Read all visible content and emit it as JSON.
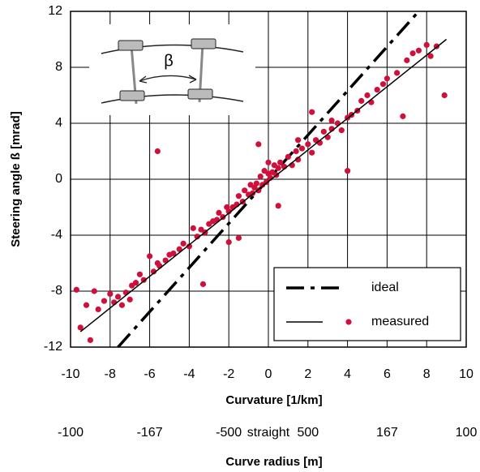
{
  "chart_data": {
    "type": "scatter",
    "xlabel": "Curvature        [1/km]",
    "ylabel": "Steering angle ß    [mrad]",
    "x2label": "Curve radius     [m]",
    "inset_label": "β",
    "xlim": [
      -10,
      10
    ],
    "ylim": [
      -12,
      12
    ],
    "xticks": [
      -10,
      -8,
      -6,
      -4,
      -2,
      0,
      2,
      4,
      6,
      8,
      10
    ],
    "yticks": [
      -12,
      -8,
      -4,
      0,
      4,
      8,
      12
    ],
    "x2ticks": [
      {
        "value": -10,
        "label": "-100"
      },
      {
        "value": -6,
        "label": "-167"
      },
      {
        "value": -2,
        "label": "-500"
      },
      {
        "value": 0,
        "label": "straight"
      },
      {
        "value": 2,
        "label": "500"
      },
      {
        "value": 6,
        "label": "167"
      },
      {
        "value": 10,
        "label": "100"
      }
    ],
    "grid": true,
    "legend": "lower right",
    "series": [
      {
        "name": "ideal",
        "color": "#000000",
        "style": "dashdot",
        "x": [
          -7.6,
          7.6
        ],
        "values": [
          -12,
          12
        ]
      },
      {
        "name": "measured",
        "color": "#d0103a",
        "fit": {
          "x": [
            -9.5,
            9
          ],
          "values": [
            -10.9,
            10
          ]
        },
        "x": [
          -9.7,
          -9.5,
          -9.2,
          -9.0,
          -8.8,
          -8.6,
          -8.3,
          -8.0,
          -7.8,
          -7.6,
          -7.4,
          -7.2,
          -7.0,
          -6.9,
          -6.7,
          -6.5,
          -6.3,
          -6.0,
          -5.8,
          -5.6,
          -5.5,
          -5.2,
          -5.0,
          -4.8,
          -4.5,
          -4.3,
          -4.0,
          -3.8,
          -3.6,
          -3.4,
          -3.2,
          -3.0,
          -2.8,
          -2.6,
          -2.5,
          -2.3,
          -2.1,
          -2.0,
          -1.8,
          -1.6,
          -1.5,
          -1.3,
          -1.2,
          -1.0,
          -0.9,
          -0.8,
          -0.7,
          -0.6,
          -0.5,
          -0.4,
          -0.3,
          -0.2,
          -0.1,
          0,
          0,
          0.1,
          0.2,
          0.3,
          0.4,
          0.5,
          0.6,
          0.8,
          1.0,
          1.2,
          1.4,
          1.5,
          1.7,
          2.0,
          2.2,
          2.4,
          2.6,
          2.8,
          3.0,
          3.2,
          3.5,
          3.7,
          4.0,
          4.2,
          4.5,
          4.7,
          5.0,
          5.2,
          5.5,
          5.8,
          6.0,
          6.5,
          7.0,
          7.3,
          7.6,
          8.0,
          8.2,
          8.5,
          8.9,
          -5.6,
          -3.3,
          -1.5,
          2.2,
          4.0,
          6.8,
          1.5,
          -0.5,
          0.5,
          -2.0,
          3.2
        ],
        "values": [
          -7.9,
          -10.6,
          -9.0,
          -11.5,
          -8.0,
          -9.3,
          -8.7,
          -8.2,
          -8.8,
          -8.4,
          -9.0,
          -8.1,
          -8.6,
          -7.6,
          -7.4,
          -6.8,
          -7.2,
          -5.5,
          -6.6,
          -6.0,
          -6.2,
          -5.8,
          -5.4,
          -5.3,
          -5.0,
          -4.6,
          -4.8,
          -3.5,
          -4.1,
          -3.6,
          -3.8,
          -3.2,
          -3.0,
          -2.9,
          -2.4,
          -2.7,
          -2.0,
          -2.3,
          -2.0,
          -1.8,
          -1.2,
          -1.6,
          -0.8,
          -1.1,
          -0.4,
          -1.0,
          -0.6,
          -0.3,
          -0.8,
          0.2,
          -0.4,
          0.6,
          -0.2,
          0.4,
          1.2,
          0.1,
          0.5,
          1.0,
          0.3,
          0.8,
          1.2,
          0.9,
          1.6,
          1.0,
          2.0,
          1.4,
          2.2,
          2.5,
          1.9,
          2.8,
          2.6,
          3.4,
          3.0,
          3.6,
          4.0,
          3.5,
          4.4,
          4.6,
          4.9,
          5.6,
          6.0,
          5.5,
          6.4,
          6.8,
          7.2,
          7.6,
          8.5,
          9.0,
          9.2,
          9.6,
          8.8,
          9.5,
          6.0,
          2.0,
          -7.5,
          -4.2,
          4.8,
          0.6,
          4.5,
          2.8,
          2.5,
          -1.9,
          -4.5,
          4.2
        ]
      }
    ]
  }
}
